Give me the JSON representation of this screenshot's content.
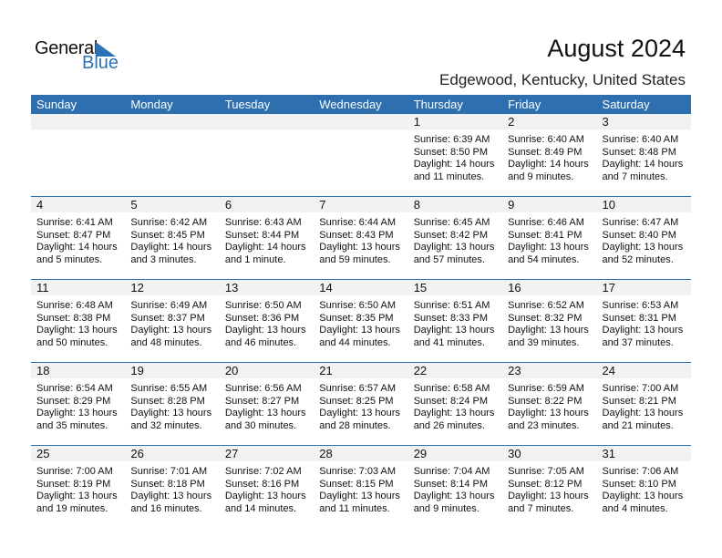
{
  "logo": {
    "text1": "General",
    "text2": "Blue"
  },
  "title": "August 2024",
  "location": "Edgewood, Kentucky, United States",
  "colors": {
    "header": "#2e6fb0",
    "brand": "#2a73b8"
  },
  "weekdays": [
    "Sunday",
    "Monday",
    "Tuesday",
    "Wednesday",
    "Thursday",
    "Friday",
    "Saturday"
  ],
  "weeks": [
    [
      null,
      null,
      null,
      null,
      {
        "day": "1",
        "sunrise": "Sunrise: 6:39 AM",
        "sunset": "Sunset: 8:50 PM",
        "daylight1": "Daylight: 14 hours",
        "daylight2": "and 11 minutes."
      },
      {
        "day": "2",
        "sunrise": "Sunrise: 6:40 AM",
        "sunset": "Sunset: 8:49 PM",
        "daylight1": "Daylight: 14 hours",
        "daylight2": "and 9 minutes."
      },
      {
        "day": "3",
        "sunrise": "Sunrise: 6:40 AM",
        "sunset": "Sunset: 8:48 PM",
        "daylight1": "Daylight: 14 hours",
        "daylight2": "and 7 minutes."
      }
    ],
    [
      {
        "day": "4",
        "sunrise": "Sunrise: 6:41 AM",
        "sunset": "Sunset: 8:47 PM",
        "daylight1": "Daylight: 14 hours",
        "daylight2": "and 5 minutes."
      },
      {
        "day": "5",
        "sunrise": "Sunrise: 6:42 AM",
        "sunset": "Sunset: 8:45 PM",
        "daylight1": "Daylight: 14 hours",
        "daylight2": "and 3 minutes."
      },
      {
        "day": "6",
        "sunrise": "Sunrise: 6:43 AM",
        "sunset": "Sunset: 8:44 PM",
        "daylight1": "Daylight: 14 hours",
        "daylight2": "and 1 minute."
      },
      {
        "day": "7",
        "sunrise": "Sunrise: 6:44 AM",
        "sunset": "Sunset: 8:43 PM",
        "daylight1": "Daylight: 13 hours",
        "daylight2": "and 59 minutes."
      },
      {
        "day": "8",
        "sunrise": "Sunrise: 6:45 AM",
        "sunset": "Sunset: 8:42 PM",
        "daylight1": "Daylight: 13 hours",
        "daylight2": "and 57 minutes."
      },
      {
        "day": "9",
        "sunrise": "Sunrise: 6:46 AM",
        "sunset": "Sunset: 8:41 PM",
        "daylight1": "Daylight: 13 hours",
        "daylight2": "and 54 minutes."
      },
      {
        "day": "10",
        "sunrise": "Sunrise: 6:47 AM",
        "sunset": "Sunset: 8:40 PM",
        "daylight1": "Daylight: 13 hours",
        "daylight2": "and 52 minutes."
      }
    ],
    [
      {
        "day": "11",
        "sunrise": "Sunrise: 6:48 AM",
        "sunset": "Sunset: 8:38 PM",
        "daylight1": "Daylight: 13 hours",
        "daylight2": "and 50 minutes."
      },
      {
        "day": "12",
        "sunrise": "Sunrise: 6:49 AM",
        "sunset": "Sunset: 8:37 PM",
        "daylight1": "Daylight: 13 hours",
        "daylight2": "and 48 minutes."
      },
      {
        "day": "13",
        "sunrise": "Sunrise: 6:50 AM",
        "sunset": "Sunset: 8:36 PM",
        "daylight1": "Daylight: 13 hours",
        "daylight2": "and 46 minutes."
      },
      {
        "day": "14",
        "sunrise": "Sunrise: 6:50 AM",
        "sunset": "Sunset: 8:35 PM",
        "daylight1": "Daylight: 13 hours",
        "daylight2": "and 44 minutes."
      },
      {
        "day": "15",
        "sunrise": "Sunrise: 6:51 AM",
        "sunset": "Sunset: 8:33 PM",
        "daylight1": "Daylight: 13 hours",
        "daylight2": "and 41 minutes."
      },
      {
        "day": "16",
        "sunrise": "Sunrise: 6:52 AM",
        "sunset": "Sunset: 8:32 PM",
        "daylight1": "Daylight: 13 hours",
        "daylight2": "and 39 minutes."
      },
      {
        "day": "17",
        "sunrise": "Sunrise: 6:53 AM",
        "sunset": "Sunset: 8:31 PM",
        "daylight1": "Daylight: 13 hours",
        "daylight2": "and 37 minutes."
      }
    ],
    [
      {
        "day": "18",
        "sunrise": "Sunrise: 6:54 AM",
        "sunset": "Sunset: 8:29 PM",
        "daylight1": "Daylight: 13 hours",
        "daylight2": "and 35 minutes."
      },
      {
        "day": "19",
        "sunrise": "Sunrise: 6:55 AM",
        "sunset": "Sunset: 8:28 PM",
        "daylight1": "Daylight: 13 hours",
        "daylight2": "and 32 minutes."
      },
      {
        "day": "20",
        "sunrise": "Sunrise: 6:56 AM",
        "sunset": "Sunset: 8:27 PM",
        "daylight1": "Daylight: 13 hours",
        "daylight2": "and 30 minutes."
      },
      {
        "day": "21",
        "sunrise": "Sunrise: 6:57 AM",
        "sunset": "Sunset: 8:25 PM",
        "daylight1": "Daylight: 13 hours",
        "daylight2": "and 28 minutes."
      },
      {
        "day": "22",
        "sunrise": "Sunrise: 6:58 AM",
        "sunset": "Sunset: 8:24 PM",
        "daylight1": "Daylight: 13 hours",
        "daylight2": "and 26 minutes."
      },
      {
        "day": "23",
        "sunrise": "Sunrise: 6:59 AM",
        "sunset": "Sunset: 8:22 PM",
        "daylight1": "Daylight: 13 hours",
        "daylight2": "and 23 minutes."
      },
      {
        "day": "24",
        "sunrise": "Sunrise: 7:00 AM",
        "sunset": "Sunset: 8:21 PM",
        "daylight1": "Daylight: 13 hours",
        "daylight2": "and 21 minutes."
      }
    ],
    [
      {
        "day": "25",
        "sunrise": "Sunrise: 7:00 AM",
        "sunset": "Sunset: 8:19 PM",
        "daylight1": "Daylight: 13 hours",
        "daylight2": "and 19 minutes."
      },
      {
        "day": "26",
        "sunrise": "Sunrise: 7:01 AM",
        "sunset": "Sunset: 8:18 PM",
        "daylight1": "Daylight: 13 hours",
        "daylight2": "and 16 minutes."
      },
      {
        "day": "27",
        "sunrise": "Sunrise: 7:02 AM",
        "sunset": "Sunset: 8:16 PM",
        "daylight1": "Daylight: 13 hours",
        "daylight2": "and 14 minutes."
      },
      {
        "day": "28",
        "sunrise": "Sunrise: 7:03 AM",
        "sunset": "Sunset: 8:15 PM",
        "daylight1": "Daylight: 13 hours",
        "daylight2": "and 11 minutes."
      },
      {
        "day": "29",
        "sunrise": "Sunrise: 7:04 AM",
        "sunset": "Sunset: 8:14 PM",
        "daylight1": "Daylight: 13 hours",
        "daylight2": "and 9 minutes."
      },
      {
        "day": "30",
        "sunrise": "Sunrise: 7:05 AM",
        "sunset": "Sunset: 8:12 PM",
        "daylight1": "Daylight: 13 hours",
        "daylight2": "and 7 minutes."
      },
      {
        "day": "31",
        "sunrise": "Sunrise: 7:06 AM",
        "sunset": "Sunset: 8:10 PM",
        "daylight1": "Daylight: 13 hours",
        "daylight2": "and 4 minutes."
      }
    ]
  ]
}
